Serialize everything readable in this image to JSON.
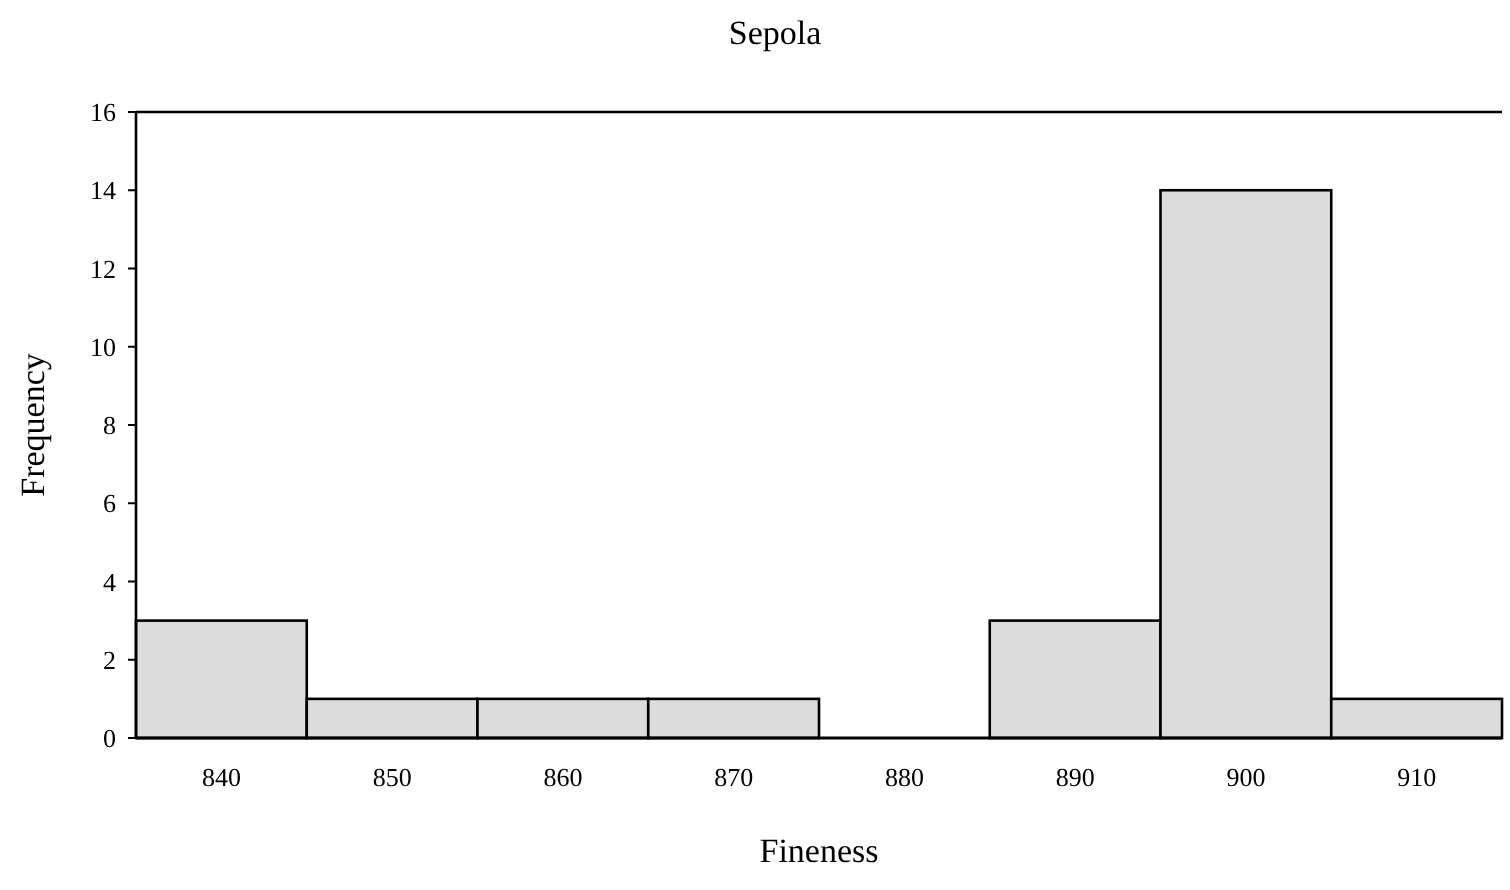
{
  "chart_data": {
    "type": "histogram",
    "title": "Sepola",
    "xlabel": "Fineness",
    "ylabel": "Frequency",
    "bins": [
      835,
      845,
      855,
      865,
      875,
      885,
      895,
      905,
      915
    ],
    "values": [
      3,
      1,
      1,
      1,
      0,
      3,
      14,
      1
    ],
    "color": "#dcdcdc",
    "xlim": [
      835,
      915
    ],
    "xticks": [
      840,
      850,
      860,
      870,
      880,
      890,
      900,
      910
    ],
    "ylim": [
      0,
      16
    ],
    "yticks": [
      0,
      2,
      4,
      6,
      8,
      10,
      12,
      14,
      16
    ],
    "grid": false
  }
}
